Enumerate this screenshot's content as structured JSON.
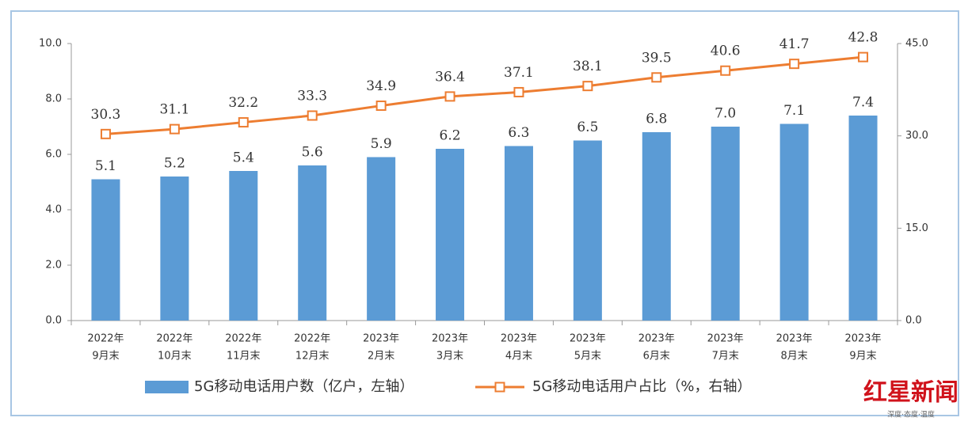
{
  "chart_data": {
    "type": "bar-line",
    "categories": [
      [
        "2022年",
        "9月末"
      ],
      [
        "2022年",
        "10月末"
      ],
      [
        "2022年",
        "11月末"
      ],
      [
        "2022年",
        "12月末"
      ],
      [
        "2023年",
        "2月末"
      ],
      [
        "2023年",
        "3月末"
      ],
      [
        "2023年",
        "4月末"
      ],
      [
        "2023年",
        "5月末"
      ],
      [
        "2023年",
        "6月末"
      ],
      [
        "2023年",
        "7月末"
      ],
      [
        "2023年",
        "8月末"
      ],
      [
        "2023年",
        "9月末"
      ]
    ],
    "series": [
      {
        "name": "5G移动电话用户数（亿户，左轴）",
        "type": "bar",
        "color": "#5b9bd5",
        "values": [
          5.1,
          5.2,
          5.4,
          5.6,
          5.9,
          6.2,
          6.3,
          6.5,
          6.8,
          7.0,
          7.1,
          7.4
        ],
        "value_labels": [
          "5.1",
          "5.2",
          "5.4",
          "5.6",
          "5.9",
          "6.2",
          "6.3",
          "6.5",
          "6.8",
          "7.0",
          "7.1",
          "7.4"
        ]
      },
      {
        "name": "5G移动电话用户占比（%，右轴）",
        "type": "line",
        "color": "#ed7d31",
        "axis": "y2",
        "values": [
          30.3,
          31.1,
          32.2,
          33.3,
          34.9,
          36.4,
          37.1,
          38.1,
          39.5,
          40.6,
          41.7,
          42.8
        ]
      }
    ],
    "ylim": [
      0,
      10
    ],
    "yticks": [
      {
        "value": 0,
        "label": "0.0"
      },
      {
        "value": 2,
        "label": "2.0"
      },
      {
        "value": 4,
        "label": "4.0"
      },
      {
        "value": 6,
        "label": "6.0"
      },
      {
        "value": 8,
        "label": "8.0"
      },
      {
        "value": 10,
        "label": "10.0"
      }
    ],
    "y2lim": [
      0,
      45
    ],
    "y2ticks": [
      {
        "value": 0,
        "label": "0.0"
      },
      {
        "value": 15,
        "label": "15.0"
      },
      {
        "value": 30,
        "label": "30.0"
      },
      {
        "value": 45,
        "label": "45.0"
      }
    ],
    "legend": "bottom",
    "grid": false
  },
  "watermark": {
    "brand": "红星新闻",
    "slogan": "深度·态度·温度"
  }
}
